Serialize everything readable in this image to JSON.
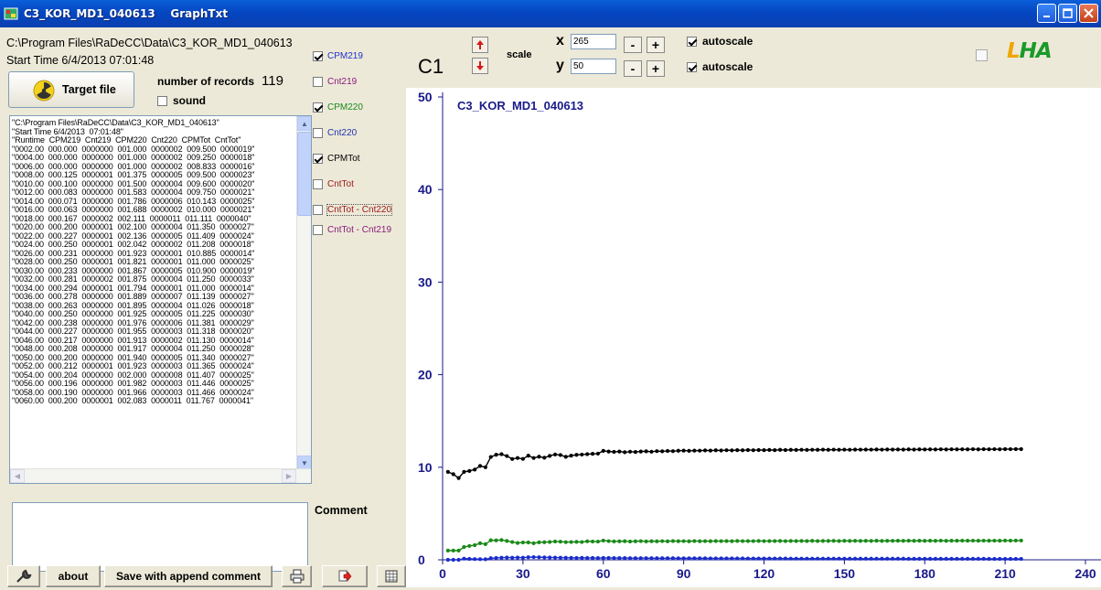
{
  "window": {
    "title": "C3_KOR_MD1_040613    GraphTxt"
  },
  "file": {
    "path": "C:\\Program Files\\RaDeCC\\Data\\C3_KOR_MD1_040613",
    "start_time": "Start Time 6/4/2013  07:01:48"
  },
  "target_button": "Target file",
  "records": {
    "label": "number of records",
    "count": "119"
  },
  "sound_label": "sound",
  "record_lines": [
    "\"C:\\Program Files\\RaDeCC\\Data\\C3_KOR_MD1_040613\"",
    "\"Start Time 6/4/2013  07:01:48\"",
    "\"Runtime  CPM219  Cnt219  CPM220  Cnt220  CPMTot  CntTot\"",
    "\"0002.00  000.000  0000000  001.000  0000002  009.500  0000019\"",
    "\"0004.00  000.000  0000000  001.000  0000002  009.250  0000018\"",
    "\"0006.00  000.000  0000000  001.000  0000002  008.833  0000016\"",
    "\"0008.00  000.125  0000001  001.375  0000005  009.500  0000023\"",
    "\"0010.00  000.100  0000000  001.500  0000004  009.600  0000020\"",
    "\"0012.00  000.083  0000000  001.583  0000004  009.750  0000021\"",
    "\"0014.00  000.071  0000000  001.786  0000006  010.143  0000025\"",
    "\"0016.00  000.063  0000000  001.688  0000002  010.000  0000021\"",
    "\"0018.00  000.167  0000002  002.111  0000011  011.111  0000040\"",
    "\"0020.00  000.200  0000001  002.100  0000004  011.350  0000027\"",
    "\"0022.00  000.227  0000001  002.136  0000005  011.409  0000024\"",
    "\"0024.00  000.250  0000001  002.042  0000002  011.208  0000018\"",
    "\"0026.00  000.231  0000000  001.923  0000001  010.885  0000014\"",
    "\"0028.00  000.250  0000001  001.821  0000001  011.000  0000025\"",
    "\"0030.00  000.233  0000000  001.867  0000005  010.900  0000019\"",
    "\"0032.00  000.281  0000002  001.875  0000004  011.250  0000033\"",
    "\"0034.00  000.294  0000001  001.794  0000001  011.000  0000014\"",
    "\"0036.00  000.278  0000000  001.889  0000007  011.139  0000027\"",
    "\"0038.00  000.263  0000000  001.895  0000004  011.026  0000018\"",
    "\"0040.00  000.250  0000000  001.925  0000005  011.225  0000030\"",
    "\"0042.00  000.238  0000000  001.976  0000006  011.381  0000029\"",
    "\"0044.00  000.227  0000000  001.955  0000003  011.318  0000020\"",
    "\"0046.00  000.217  0000000  001.913  0000002  011.130  0000014\"",
    "\"0048.00  000.208  0000000  001.917  0000004  011.250  0000028\"",
    "\"0050.00  000.200  0000000  001.940  0000005  011.340  0000027\"",
    "\"0052.00  000.212  0000001  001.923  0000003  011.365  0000024\"",
    "\"0054.00  000.204  0000000  002.000  0000008  011.407  0000025\"",
    "\"0056.00  000.196  0000000  001.982  0000003  011.446  0000025\"",
    "\"0058.00  000.190  0000000  001.966  0000003  011.466  0000024\"",
    "\"0060.00  000.200  0000001  002.083  0000011  011.767  0000041\""
  ],
  "series_toggles": [
    {
      "label": "CPM219",
      "checked": true,
      "color": "#2233cc"
    },
    {
      "label": "Cnt219",
      "checked": false,
      "color": "#8a1a7a"
    },
    {
      "label": "CPM220",
      "checked": true,
      "color": "#1a8a1a"
    },
    {
      "label": "Cnt220",
      "checked": false,
      "color": "#2233aa"
    },
    {
      "label": "CPMTot",
      "checked": true,
      "color": "#000000"
    },
    {
      "label": "CntTot",
      "checked": false,
      "color": "#a01818"
    },
    {
      "label": "CntTot - Cnt220",
      "checked": false,
      "color": "#a01818"
    },
    {
      "label": "CntTot - Cnt219",
      "checked": false,
      "color": "#8a1a7a"
    }
  ],
  "comment_label": "Comment",
  "buttons": {
    "about": "about",
    "save": "Save with append comment"
  },
  "plot_controls": {
    "channel": "C1",
    "scale_label": "scale",
    "x_label": "x",
    "x_value": "265",
    "y_label": "y",
    "y_value": "50",
    "autoscale_label": "autoscale",
    "autoscale_x": true,
    "autoscale_y": true
  },
  "logo_text": "LHA",
  "chart_data": {
    "type": "scatter",
    "title": "C3_KOR_MD1_040613",
    "xlim": [
      0,
      240
    ],
    "ylim": [
      0,
      50
    ],
    "xticks": [
      0,
      30,
      60,
      90,
      120,
      150,
      180,
      210,
      240
    ],
    "yticks": [
      0,
      10,
      20,
      30,
      40,
      50
    ],
    "series": [
      {
        "name": "CPMTot",
        "color": "#000000",
        "x": [
          2,
          4,
          6,
          8,
          10,
          12,
          14,
          16,
          18,
          20,
          22,
          24,
          26,
          28,
          30,
          32,
          34,
          36,
          38,
          40,
          42,
          44,
          46,
          48,
          50,
          52,
          54,
          56,
          58,
          60,
          62,
          64,
          66,
          68,
          70,
          72,
          74,
          76,
          78,
          80,
          82,
          84,
          86,
          88,
          90,
          92,
          94,
          96,
          98,
          100,
          102,
          104,
          106,
          108,
          110,
          112,
          114,
          116,
          118,
          120,
          122,
          124,
          126,
          128,
          130,
          132,
          134,
          136,
          138,
          140,
          142,
          144,
          146,
          148,
          150,
          152,
          154,
          156,
          158,
          160,
          162,
          164,
          166,
          168,
          170,
          172,
          174,
          176,
          178,
          180,
          182,
          184,
          186,
          188,
          190,
          192,
          194,
          196,
          198,
          200,
          202,
          204,
          206,
          208,
          210,
          212,
          214,
          216
        ],
        "y": [
          9.5,
          9.25,
          8.83,
          9.5,
          9.6,
          9.75,
          10.14,
          10.0,
          11.11,
          11.35,
          11.41,
          11.21,
          10.89,
          11.0,
          10.9,
          11.25,
          11.0,
          11.14,
          11.03,
          11.23,
          11.38,
          11.32,
          11.13,
          11.25,
          11.34,
          11.37,
          11.41,
          11.45,
          11.47,
          11.77,
          11.7,
          11.66,
          11.7,
          11.62,
          11.68,
          11.65,
          11.7,
          11.72,
          11.68,
          11.74,
          11.72,
          11.76,
          11.74,
          11.78,
          11.8,
          11.77,
          11.8,
          11.79,
          11.82,
          11.8,
          11.83,
          11.81,
          11.84,
          11.82,
          11.85,
          11.83,
          11.86,
          11.84,
          11.86,
          11.85,
          11.87,
          11.85,
          11.88,
          11.86,
          11.88,
          11.87,
          11.89,
          11.87,
          11.89,
          11.88,
          11.9,
          11.88,
          11.9,
          11.89,
          11.9,
          11.89,
          11.91,
          11.9,
          11.91,
          11.9,
          11.92,
          11.9,
          11.92,
          11.91,
          11.92,
          11.91,
          11.93,
          11.91,
          11.93,
          11.92,
          11.93,
          11.92,
          11.94,
          11.92,
          11.94,
          11.93,
          11.94,
          11.93,
          11.95,
          11.93,
          11.95,
          11.94,
          11.95,
          11.94,
          11.96,
          11.95,
          11.96,
          11.96
        ]
      },
      {
        "name": "CPM220",
        "color": "#1a8a1a",
        "x": [
          2,
          4,
          6,
          8,
          10,
          12,
          14,
          16,
          18,
          20,
          22,
          24,
          26,
          28,
          30,
          32,
          34,
          36,
          38,
          40,
          42,
          44,
          46,
          48,
          50,
          52,
          54,
          56,
          58,
          60,
          62,
          64,
          66,
          68,
          70,
          72,
          74,
          76,
          78,
          80,
          82,
          84,
          86,
          88,
          90,
          92,
          94,
          96,
          98,
          100,
          102,
          104,
          106,
          108,
          110,
          112,
          114,
          116,
          118,
          120,
          122,
          124,
          126,
          128,
          130,
          132,
          134,
          136,
          138,
          140,
          142,
          144,
          146,
          148,
          150,
          152,
          154,
          156,
          158,
          160,
          162,
          164,
          166,
          168,
          170,
          172,
          174,
          176,
          178,
          180,
          182,
          184,
          186,
          188,
          190,
          192,
          194,
          196,
          198,
          200,
          202,
          204,
          206,
          208,
          210,
          212,
          214,
          216
        ],
        "y": [
          1.0,
          1.0,
          1.0,
          1.38,
          1.5,
          1.58,
          1.79,
          1.69,
          2.11,
          2.1,
          2.14,
          2.04,
          1.92,
          1.82,
          1.87,
          1.88,
          1.79,
          1.89,
          1.9,
          1.93,
          1.98,
          1.96,
          1.91,
          1.92,
          1.94,
          1.92,
          2.0,
          1.98,
          1.97,
          2.08,
          2.02,
          1.99,
          2.0,
          2.01,
          1.98,
          2.0,
          2.02,
          1.99,
          2.01,
          2.0,
          2.02,
          2.0,
          2.03,
          2.01,
          2.02,
          2.0,
          2.03,
          2.01,
          2.02,
          2.01,
          2.03,
          2.02,
          2.03,
          2.01,
          2.04,
          2.02,
          2.03,
          2.02,
          2.04,
          2.02,
          2.03,
          2.03,
          2.04,
          2.02,
          2.04,
          2.03,
          2.04,
          2.03,
          2.05,
          2.03,
          2.04,
          2.04,
          2.05,
          2.03,
          2.05,
          2.04,
          2.05,
          2.04,
          2.05,
          2.04,
          2.06,
          2.04,
          2.05,
          2.05,
          2.06,
          2.05,
          2.06,
          2.05,
          2.06,
          2.05,
          2.06,
          2.05,
          2.07,
          2.05,
          2.06,
          2.06,
          2.07,
          2.06,
          2.07,
          2.06,
          2.07,
          2.06,
          2.07,
          2.06,
          2.08,
          2.07,
          2.08,
          2.08
        ]
      },
      {
        "name": "CPM219",
        "color": "#1a2ccc",
        "x": [
          2,
          4,
          6,
          8,
          10,
          12,
          14,
          16,
          18,
          20,
          22,
          24,
          26,
          28,
          30,
          32,
          34,
          36,
          38,
          40,
          42,
          44,
          46,
          48,
          50,
          52,
          54,
          56,
          58,
          60,
          62,
          64,
          66,
          68,
          70,
          72,
          74,
          76,
          78,
          80,
          82,
          84,
          86,
          88,
          90,
          92,
          94,
          96,
          98,
          100,
          102,
          104,
          106,
          108,
          110,
          112,
          114,
          116,
          118,
          120,
          122,
          124,
          126,
          128,
          130,
          132,
          134,
          136,
          138,
          140,
          142,
          144,
          146,
          148,
          150,
          152,
          154,
          156,
          158,
          160,
          162,
          164,
          166,
          168,
          170,
          172,
          174,
          176,
          178,
          180,
          182,
          184,
          186,
          188,
          190,
          192,
          194,
          196,
          198,
          200,
          202,
          204,
          206,
          208,
          210,
          212,
          214,
          216
        ],
        "y": [
          0,
          0,
          0,
          0.13,
          0.1,
          0.08,
          0.07,
          0.06,
          0.17,
          0.2,
          0.23,
          0.25,
          0.23,
          0.25,
          0.23,
          0.28,
          0.29,
          0.28,
          0.26,
          0.25,
          0.24,
          0.23,
          0.22,
          0.21,
          0.2,
          0.21,
          0.2,
          0.2,
          0.19,
          0.2,
          0.2,
          0.19,
          0.19,
          0.19,
          0.18,
          0.18,
          0.18,
          0.18,
          0.17,
          0.17,
          0.17,
          0.17,
          0.17,
          0.16,
          0.16,
          0.16,
          0.16,
          0.16,
          0.16,
          0.15,
          0.15,
          0.15,
          0.15,
          0.15,
          0.15,
          0.15,
          0.14,
          0.14,
          0.14,
          0.14,
          0.14,
          0.14,
          0.14,
          0.14,
          0.13,
          0.13,
          0.13,
          0.13,
          0.13,
          0.13,
          0.13,
          0.13,
          0.13,
          0.13,
          0.12,
          0.12,
          0.12,
          0.12,
          0.12,
          0.12,
          0.12,
          0.12,
          0.12,
          0.12,
          0.12,
          0.12,
          0.11,
          0.11,
          0.11,
          0.11,
          0.11,
          0.11,
          0.11,
          0.11,
          0.11,
          0.11,
          0.11,
          0.11,
          0.11,
          0.11,
          0.11,
          0.1,
          0.1,
          0.1,
          0.1,
          0.1,
          0.1,
          0.1
        ]
      }
    ]
  }
}
